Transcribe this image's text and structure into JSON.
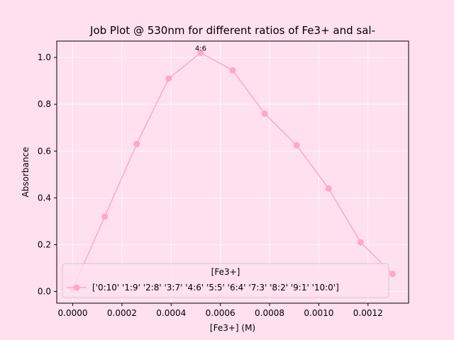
{
  "chart_data": {
    "type": "line",
    "title": "Job Plot @ 530nm for different ratios of Fe3+ and sal-",
    "xlabel": "[Fe3+] (M)",
    "ylabel": "Absorbance",
    "xlim": [
      -6.5e-05,
      0.001365
    ],
    "ylim": [
      -0.05,
      1.07
    ],
    "xticks": [
      0.0,
      0.0002,
      0.0004,
      0.0006,
      0.0008,
      0.001,
      0.0012
    ],
    "xtick_labels": [
      "0.0000",
      "0.0002",
      "0.0004",
      "0.0006",
      "0.0008",
      "0.0010",
      "0.0012"
    ],
    "yticks": [
      0.0,
      0.2,
      0.4,
      0.6,
      0.8,
      1.0
    ],
    "ytick_labels": [
      "0.0",
      "0.2",
      "0.4",
      "0.6",
      "0.8",
      "1.0"
    ],
    "grid": true,
    "series": [
      {
        "name": "['0:10' '1:9' '2:8' '3:7' '4:6' '5:5' '6:4' '7:3' '8:2' '9:1' '10:0']",
        "color": "#ffa6cf",
        "x": [
          0.0,
          0.00013,
          0.00026,
          0.00039,
          0.00052,
          0.00065,
          0.00078,
          0.00091,
          0.00104,
          0.00117,
          0.0013
        ],
        "y": [
          0.01,
          0.32,
          0.63,
          0.91,
          1.02,
          0.945,
          0.76,
          0.625,
          0.44,
          0.21,
          0.075
        ]
      }
    ],
    "annotations": [
      {
        "text": "4:6",
        "x": 0.00052,
        "y": 1.02
      }
    ],
    "legend": {
      "title": "[Fe3+]",
      "location": "lower center"
    }
  },
  "colors": {
    "background": "#ffe0ee",
    "grid": "#ffffff",
    "line": "#ffa6cf"
  }
}
